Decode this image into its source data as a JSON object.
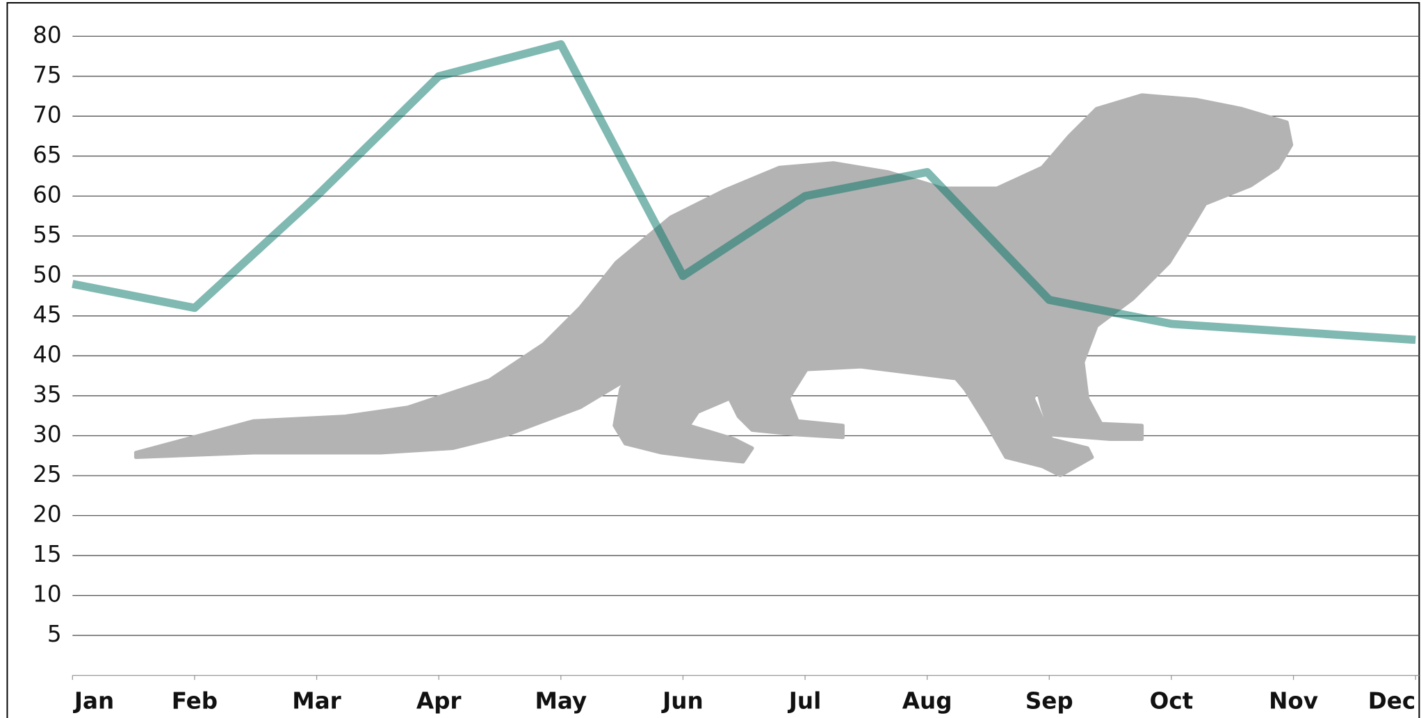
{
  "chart_data": {
    "type": "line",
    "categories": [
      "Jan",
      "Feb",
      "Mar",
      "Apr",
      "May",
      "Jun",
      "Jul",
      "Aug",
      "Sep",
      "Oct",
      "Nov",
      "Dec"
    ],
    "values": [
      49,
      46,
      60,
      75,
      79,
      50,
      60,
      63,
      47,
      44,
      43,
      42
    ],
    "color": "#007363",
    "ylim": [
      0,
      80
    ],
    "yticks": [
      5,
      10,
      15,
      20,
      25,
      30,
      35,
      40,
      45,
      50,
      55,
      60,
      65,
      70,
      75,
      80
    ],
    "grid": true
  }
}
